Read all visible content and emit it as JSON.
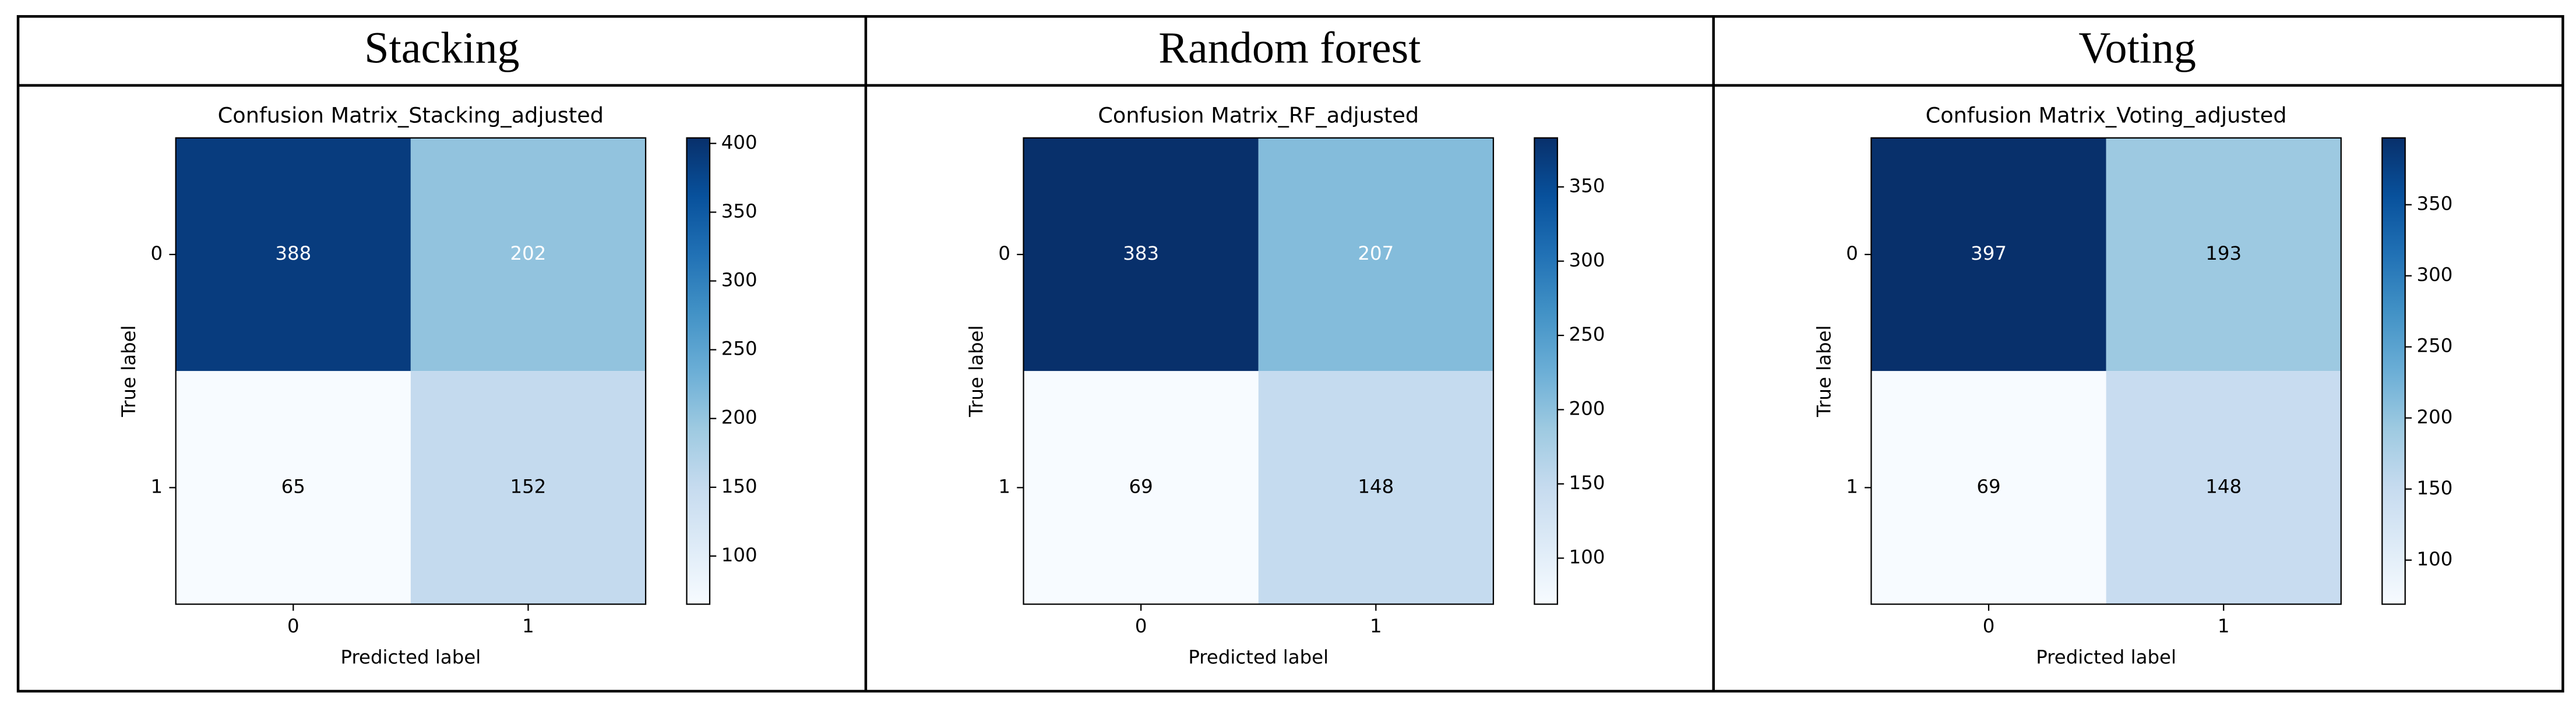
{
  "headers": [
    "Stacking",
    "Random forest",
    "Voting"
  ],
  "chart_data": [
    {
      "type": "heatmap",
      "title": "Confusion Matrix_Stacking_adjusted",
      "x_label": "Predicted label",
      "y_label": "True label",
      "x_categories": [
        "0",
        "1"
      ],
      "y_categories": [
        "0",
        "1"
      ],
      "values": [
        [
          388,
          202
        ],
        [
          65,
          152
        ]
      ],
      "cmap": "Blues",
      "clim": [
        65,
        404
      ],
      "cticks": [
        100,
        150,
        200,
        250,
        300,
        350,
        400
      ]
    },
    {
      "type": "heatmap",
      "title": "Confusion Matrix_RF_adjusted",
      "x_label": "Predicted label",
      "y_label": "True label",
      "x_categories": [
        "0",
        "1"
      ],
      "y_categories": [
        "0",
        "1"
      ],
      "values": [
        [
          383,
          207
        ],
        [
          69,
          148
        ]
      ],
      "cmap": "Blues",
      "clim": [
        69,
        383
      ],
      "cticks": [
        100,
        150,
        200,
        250,
        300,
        350
      ]
    },
    {
      "type": "heatmap",
      "title": "Confusion Matrix_Voting_adjusted",
      "x_label": "Predicted label",
      "y_label": "True label",
      "x_categories": [
        "0",
        "1"
      ],
      "y_categories": [
        "0",
        "1"
      ],
      "values": [
        [
          397,
          193
        ],
        [
          69,
          148
        ]
      ],
      "cmap": "Blues",
      "clim": [
        69,
        397
      ],
      "cticks": [
        100,
        150,
        200,
        250,
        300,
        350
      ]
    }
  ]
}
